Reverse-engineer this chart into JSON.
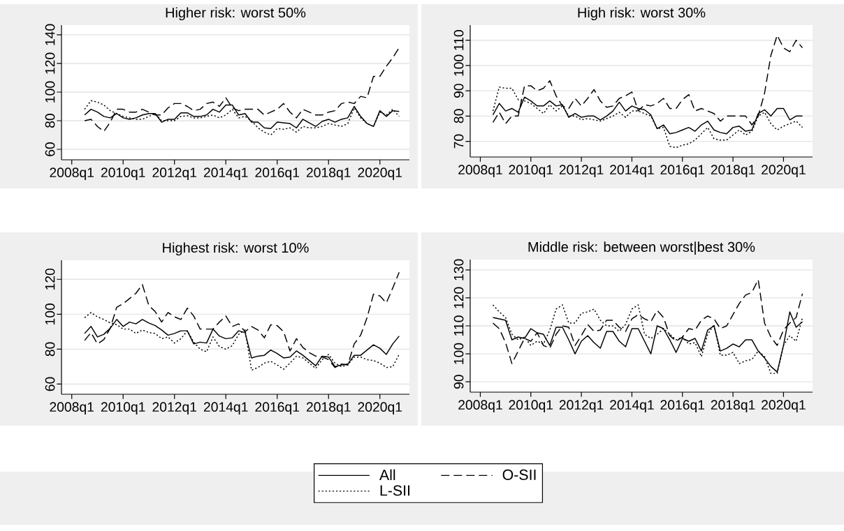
{
  "chart_data": [
    {
      "type": "line",
      "title": "Higher risk: worst 50%",
      "ylim": [
        52.7,
        146.8
      ],
      "yticks": [
        60,
        80,
        100,
        120,
        140
      ],
      "grid": "y",
      "categories": [
        "2008q1",
        null,
        null,
        null,
        null,
        null,
        null,
        null,
        "2010q1",
        null,
        null,
        null,
        null,
        null,
        null,
        null,
        "2012q1",
        null,
        null,
        null,
        null,
        null,
        null,
        null,
        "2014q1",
        null,
        null,
        null,
        null,
        null,
        null,
        null,
        "2016q1",
        null,
        null,
        null,
        null,
        null,
        null,
        null,
        "2018q1",
        null,
        null,
        null,
        null,
        null,
        null,
        null,
        "2020q1",
        null,
        null,
        null
      ],
      "series": [
        {
          "color": "#000000",
          "line_style": "solid",
          "values": [
            null,
            null,
            84,
            88,
            86,
            83,
            82,
            85,
            82,
            81,
            82,
            84,
            85,
            85,
            79,
            81,
            81,
            85.5,
            85.5,
            83,
            83,
            84,
            88,
            86,
            91,
            91,
            84,
            85,
            79,
            79,
            75,
            74.5,
            79,
            78.5,
            78,
            75,
            81,
            78.5,
            76,
            79.5,
            81,
            79,
            81,
            82,
            90,
            83,
            78,
            76,
            87,
            83,
            87,
            86.5
          ]
        },
        {
          "color": "#000000",
          "line_style": "dotted",
          "values": [
            null,
            null,
            88,
            94,
            93,
            91,
            87,
            85,
            83,
            82,
            81,
            81,
            83,
            85,
            80,
            80,
            80,
            83,
            83.5,
            82,
            82,
            83,
            84,
            82,
            84,
            88,
            82,
            83,
            80,
            75,
            72,
            70,
            74.5,
            74,
            75,
            72,
            76,
            75,
            75,
            76,
            78,
            77,
            76,
            78,
            89,
            82,
            78,
            76,
            86,
            84,
            88,
            83
          ]
        },
        {
          "color": "#000000",
          "line_style": "dashed",
          "values": [
            null,
            null,
            80,
            81,
            76,
            72.5,
            79,
            88,
            88,
            86,
            86,
            88,
            86,
            84,
            84,
            89,
            92,
            92,
            90,
            87,
            88,
            92,
            93,
            90,
            96,
            89,
            87,
            88,
            88,
            88,
            84,
            86,
            88,
            92,
            86,
            82,
            88,
            86,
            84,
            84,
            86,
            87,
            92,
            93,
            92,
            97,
            96,
            111,
            111,
            118,
            124,
            131
          ]
        }
      ]
    },
    {
      "type": "line",
      "title": "High risk: worst 30%",
      "ylim": [
        63.8,
        116
      ],
      "yticks": [
        70,
        80,
        90,
        100,
        110
      ],
      "grid": "y",
      "categories": [
        "2008q1",
        null,
        null,
        null,
        null,
        null,
        null,
        null,
        "2010q1",
        null,
        null,
        null,
        null,
        null,
        null,
        null,
        "2012q1",
        null,
        null,
        null,
        null,
        null,
        null,
        null,
        "2014q1",
        null,
        null,
        null,
        null,
        null,
        null,
        null,
        "2016q1",
        null,
        null,
        null,
        null,
        null,
        null,
        null,
        "2018q1",
        null,
        null,
        null,
        null,
        null,
        null,
        null,
        "2020q1",
        null,
        null,
        null
      ],
      "series": [
        {
          "color": "#000000",
          "line_style": "solid",
          "values": [
            null,
            null,
            80.5,
            85,
            82,
            83,
            81.5,
            87.5,
            86,
            84,
            84,
            86,
            84,
            84.5,
            79.5,
            81,
            79.5,
            80,
            80,
            78.5,
            80,
            82,
            85.5,
            82,
            84,
            83,
            82.5,
            80.5,
            75,
            76.5,
            73,
            73.5,
            74.5,
            75.5,
            74,
            76.5,
            78,
            74.5,
            73.5,
            73,
            75.5,
            76,
            74,
            74.5,
            81,
            82.5,
            80,
            83,
            83,
            78.5,
            80,
            80
          ]
        },
        {
          "color": "#000000",
          "line_style": "dotted",
          "values": [
            null,
            null,
            82,
            91.5,
            91,
            91,
            86.5,
            86,
            85,
            83,
            81,
            84.5,
            82,
            84,
            80,
            80,
            78.5,
            79,
            78.5,
            78,
            79,
            80,
            81.5,
            79.5,
            82,
            82,
            81,
            80,
            75,
            75.5,
            68,
            67.5,
            68.5,
            69,
            70.5,
            73,
            75.5,
            71,
            70.5,
            70.5,
            72.5,
            74.5,
            72.5,
            74,
            80,
            81.5,
            77,
            74.5,
            76,
            77,
            78,
            75.5
          ]
        },
        {
          "color": "#000000",
          "line_style": "dashed",
          "values": [
            null,
            null,
            77.5,
            81.5,
            77,
            80,
            80,
            92,
            92,
            90,
            91,
            94,
            88,
            84,
            83,
            87,
            84,
            87,
            90.5,
            86,
            83.5,
            84,
            87,
            88,
            89.5,
            82,
            84.5,
            84,
            85,
            87,
            83,
            83,
            86.5,
            88.5,
            82,
            83,
            82,
            81,
            78,
            80,
            80,
            80,
            80,
            76.5,
            80,
            89,
            104,
            112,
            107,
            105.5,
            110,
            107
          ]
        }
      ]
    },
    {
      "type": "line",
      "title": "Highest risk: worst 10%",
      "ylim": [
        54.2,
        130.9
      ],
      "yticks": [
        60,
        80,
        100,
        120
      ],
      "grid": "y",
      "categories": [
        "2008q1",
        null,
        null,
        null,
        null,
        null,
        null,
        null,
        "2010q1",
        null,
        null,
        null,
        null,
        null,
        null,
        null,
        "2012q1",
        null,
        null,
        null,
        null,
        null,
        null,
        null,
        "2014q1",
        null,
        null,
        null,
        null,
        null,
        null,
        null,
        "2016q1",
        null,
        null,
        null,
        null,
        null,
        null,
        null,
        "2018q1",
        null,
        null,
        null,
        null,
        null,
        null,
        null,
        "2020q1",
        null,
        null,
        null
      ],
      "series": [
        {
          "color": "#000000",
          "line_style": "solid",
          "values": [
            null,
            null,
            89,
            93,
            87,
            88.5,
            92,
            97,
            93,
            95.5,
            94.5,
            97,
            95,
            93.5,
            91,
            88,
            89,
            90.5,
            90.5,
            83,
            84,
            83.5,
            91.5,
            87.5,
            86,
            86.5,
            90.5,
            89.5,
            75,
            76,
            76.5,
            79.5,
            77.5,
            75,
            75.5,
            79,
            76.5,
            73.5,
            70.5,
            76,
            75.5,
            70,
            71,
            71.5,
            76.5,
            76.5,
            79.5,
            82.5,
            80.5,
            77,
            83,
            87.5
          ]
        },
        {
          "color": "#000000",
          "line_style": "dotted",
          "values": [
            null,
            null,
            98,
            101,
            98.5,
            97,
            95,
            94,
            91.5,
            91.5,
            89,
            91,
            89.5,
            89,
            86,
            87,
            83.5,
            86,
            90.5,
            84,
            80,
            78.5,
            87,
            81.5,
            80,
            82,
            88.5,
            91,
            68,
            69.5,
            72,
            73,
            71,
            68.5,
            72,
            76,
            75,
            72,
            69,
            74,
            77,
            72,
            70,
            71,
            75.5,
            75.5,
            74,
            73.5,
            72,
            69.5,
            70,
            77
          ]
        },
        {
          "color": "#000000",
          "line_style": "dashed",
          "values": [
            null,
            null,
            85,
            89.5,
            83,
            85.5,
            92,
            104,
            106,
            109,
            112,
            117,
            105,
            101.5,
            95.5,
            101,
            98.5,
            97,
            103.5,
            99,
            91.5,
            91.5,
            91.5,
            95.5,
            99,
            93,
            94.5,
            90,
            93,
            91,
            86.5,
            94,
            93.5,
            90,
            79,
            86,
            81,
            78,
            76,
            75.5,
            74,
            69.5,
            71.5,
            71,
            83,
            88,
            98,
            111.5,
            110.5,
            106.5,
            115,
            124
          ]
        }
      ]
    },
    {
      "type": "line",
      "title": "Middle risk: between worst|best 30%",
      "ylim": [
        86.3,
        133.7
      ],
      "yticks": [
        90,
        100,
        110,
        120,
        130
      ],
      "grid": "y",
      "legend": "bottom",
      "categories": [
        "2008q1",
        null,
        null,
        null,
        null,
        null,
        null,
        null,
        "2010q1",
        null,
        null,
        null,
        null,
        null,
        null,
        null,
        "2012q1",
        null,
        null,
        null,
        null,
        null,
        null,
        null,
        "2014q1",
        null,
        null,
        null,
        null,
        null,
        null,
        null,
        "2016q1",
        null,
        null,
        null,
        null,
        null,
        null,
        null,
        "2018q1",
        null,
        null,
        null,
        null,
        null,
        null,
        null,
        "2020q1",
        null,
        null,
        null
      ],
      "series": [
        {
          "name": "All",
          "color": "#000000",
          "line_style": "solid",
          "values": [
            null,
            null,
            113,
            112.5,
            112,
            105,
            106,
            105.5,
            109,
            107.5,
            107,
            103,
            109.5,
            109.5,
            105,
            100,
            104.5,
            106.5,
            104,
            102,
            108,
            108,
            104.5,
            102.5,
            109,
            109,
            104.5,
            100,
            110,
            109,
            105,
            100.5,
            105.5,
            104.5,
            105.5,
            101,
            108.5,
            110,
            101,
            102,
            103.5,
            102.5,
            105,
            105,
            101,
            98.5,
            95.5,
            93.5,
            103,
            115,
            109.5,
            111.5
          ]
        },
        {
          "name": "L-SII",
          "color": "#000000",
          "line_style": "dotted",
          "values": [
            null,
            null,
            117.5,
            115,
            113,
            107,
            105,
            106,
            103,
            104.5,
            103.5,
            108.5,
            116,
            117.5,
            111,
            111,
            114.5,
            115,
            116,
            112,
            110,
            110,
            108,
            110.5,
            116,
            117.5,
            107,
            105.5,
            107,
            109,
            107,
            105,
            106,
            103.5,
            104,
            99,
            107,
            110.5,
            99.5,
            99.5,
            100.5,
            96.5,
            97.5,
            98,
            101,
            99,
            93,
            93,
            103,
            106.5,
            104.5,
            113
          ]
        },
        {
          "name": "O-SII",
          "color": "#000000",
          "line_style": "dashed",
          "values": [
            null,
            null,
            111,
            109,
            104,
            96.5,
            101,
            105.5,
            104.5,
            107.5,
            103,
            102,
            107,
            110,
            109.5,
            103,
            106.5,
            110.5,
            108,
            108.5,
            112,
            112,
            109.5,
            108,
            112.5,
            114,
            112.5,
            111.5,
            115.5,
            113,
            106.5,
            104.5,
            106,
            109,
            108.5,
            112,
            113.5,
            112.5,
            109,
            110,
            114,
            118,
            121,
            122,
            126.5,
            111,
            106,
            103,
            108.5,
            111,
            113,
            121.5
          ]
        }
      ]
    }
  ]
}
